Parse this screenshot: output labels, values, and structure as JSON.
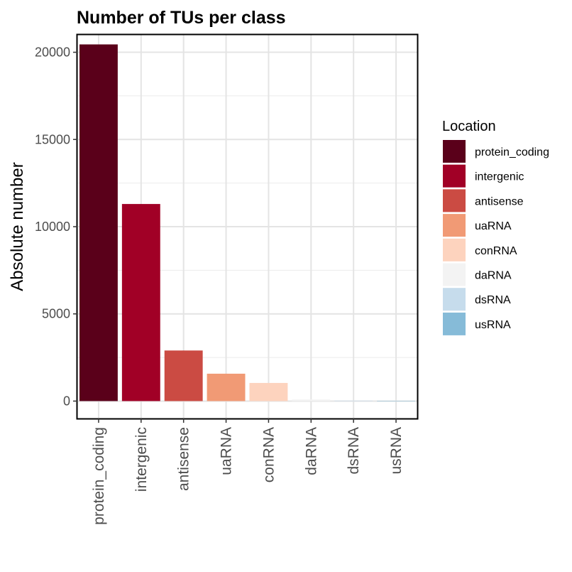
{
  "chart_data": {
    "type": "bar",
    "title": "Number of TUs per class",
    "xlabel": "",
    "ylabel": "Absolute number",
    "categories": [
      "protein_coding",
      "intergenic",
      "antisense",
      "uaRNA",
      "conRNA",
      "daRNA",
      "dsRNA",
      "usRNA"
    ],
    "values": [
      20450,
      11300,
      2900,
      1570,
      1040,
      90,
      25,
      15
    ],
    "colors": [
      "#5a001a",
      "#a10026",
      "#cb4b43",
      "#f19a75",
      "#fdd3be",
      "#f3f3f3",
      "#c6dcec",
      "#86bbd8"
    ],
    "ylim": [
      -1000,
      21000
    ],
    "yticks": [
      0,
      5000,
      10000,
      15000,
      20000
    ],
    "grid": true,
    "legend": {
      "title": "Location",
      "placement": "right",
      "entries": [
        "protein_coding",
        "intergenic",
        "antisense",
        "uaRNA",
        "conRNA",
        "daRNA",
        "dsRNA",
        "usRNA"
      ]
    }
  }
}
